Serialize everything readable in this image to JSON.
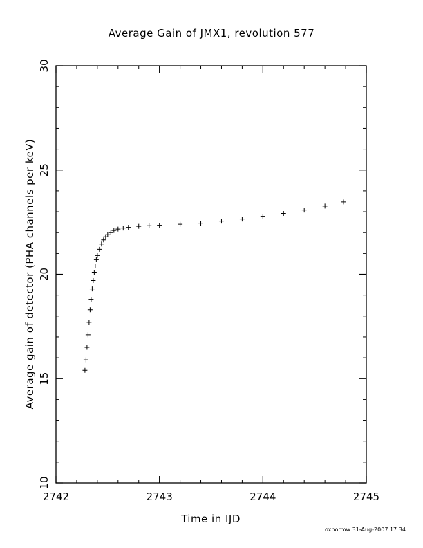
{
  "chart_data": {
    "type": "scatter",
    "title": "Average Gain of JMX1, revolution 577",
    "xlabel": "Time in IJD",
    "ylabel": "Average gain of detector (PHA channels per keV)",
    "xlim": [
      2742,
      2745
    ],
    "ylim": [
      10,
      30
    ],
    "xticks": [
      2742,
      2743,
      2744,
      2745
    ],
    "yticks": [
      10,
      15,
      20,
      25,
      30
    ],
    "marker": "+",
    "marker_color": "#000000",
    "grid": false,
    "series": [
      {
        "x": [
          2742.28,
          2742.29,
          2742.3,
          2742.31,
          2742.32,
          2742.33,
          2742.34,
          2742.35,
          2742.36,
          2742.37,
          2742.38,
          2742.39,
          2742.4,
          2742.42,
          2742.44,
          2742.46,
          2742.48,
          2742.5,
          2742.53,
          2742.56,
          2742.6,
          2742.65,
          2742.7,
          2742.8,
          2742.9,
          2743.0,
          2743.2,
          2743.4,
          2743.6,
          2743.8,
          2744.0,
          2744.2,
          2744.4,
          2744.6,
          2744.78
        ],
        "y": [
          15.4,
          15.9,
          16.5,
          17.1,
          17.7,
          18.3,
          18.8,
          19.3,
          19.7,
          20.1,
          20.4,
          20.7,
          20.9,
          21.2,
          21.45,
          21.65,
          21.8,
          21.9,
          22.0,
          22.1,
          22.17,
          22.22,
          22.25,
          22.3,
          22.33,
          22.35,
          22.4,
          22.45,
          22.55,
          22.65,
          22.78,
          22.92,
          23.08,
          23.27,
          23.47
        ]
      }
    ]
  },
  "footer": "oxborrow 31-Aug-2007 17:34"
}
